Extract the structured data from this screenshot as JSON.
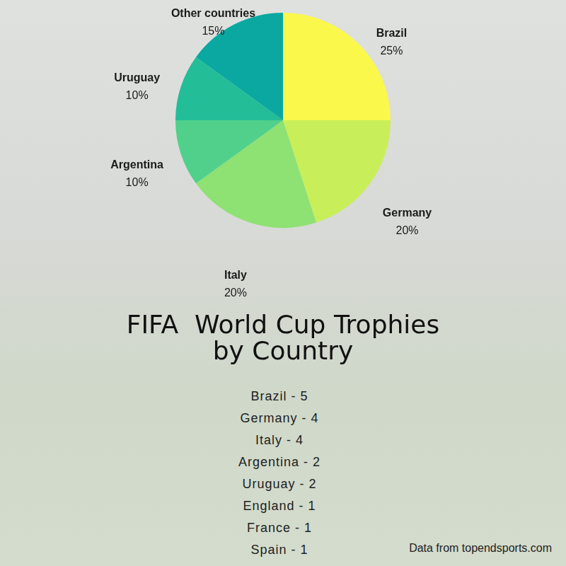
{
  "chart_data": {
    "type": "pie",
    "title": [
      "FIFA  World Cup Trophies",
      "by Country"
    ],
    "categories": [
      "Brazil",
      "Germany",
      "Italy",
      "Argentina",
      "Uruguay",
      "Other countries"
    ],
    "values": [
      25,
      20,
      20,
      10,
      10,
      15
    ],
    "value_labels": [
      "25%",
      "20%",
      "20%",
      "10%",
      "10%",
      "15%"
    ],
    "colors": [
      "#fbf84c",
      "#c8ef5a",
      "#8ee173",
      "#50d08a",
      "#23bd97",
      "#0aa8a0"
    ],
    "data_labels": true,
    "annotations": [
      "Brazil - 5",
      "Germany - 4",
      "Italy - 4",
      "Argentina - 2",
      "Uruguay - 2",
      "England - 1",
      "France - 1",
      "Spain - 1"
    ],
    "source": "Data from topendsports.com"
  }
}
